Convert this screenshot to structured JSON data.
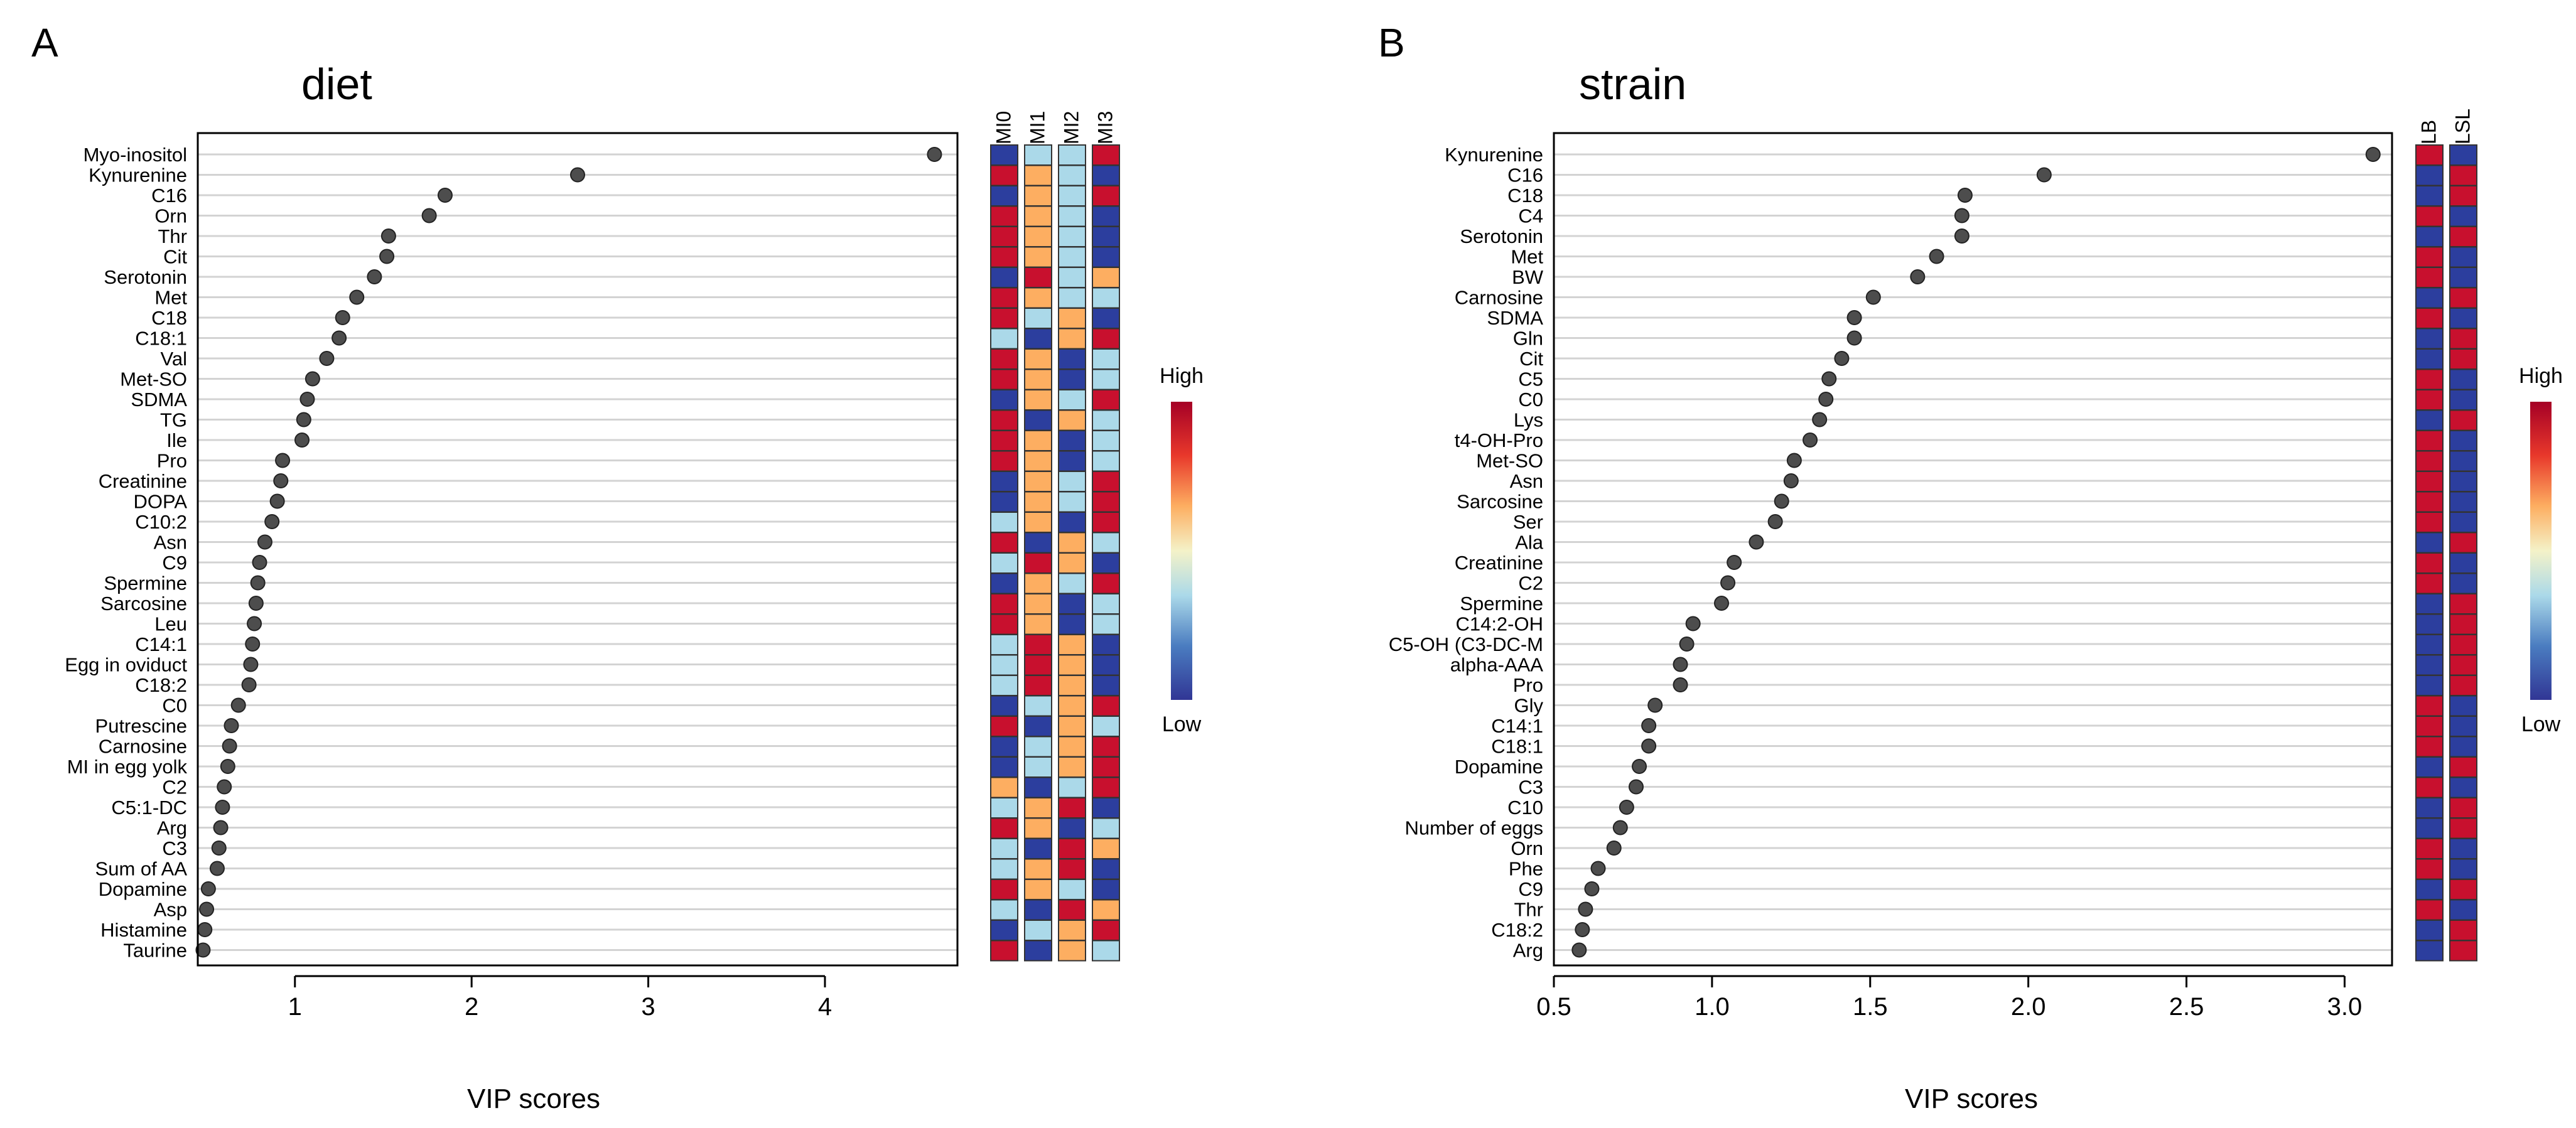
{
  "colors": {
    "high": "#c8102e",
    "orange": "#fdae61",
    "light": "#abd9e9",
    "low": "#2c3e9e",
    "point": "#4d4d4d",
    "grid": "#d3d3d3"
  },
  "legend": {
    "high": "High",
    "low": "Low"
  },
  "chart_data": [
    {
      "type": "scatter",
      "panel_letter": "A",
      "title": "diet",
      "xlabel": "VIP scores",
      "xlim": [
        0.45,
        4.75
      ],
      "xticks": [
        1,
        2,
        3,
        4
      ],
      "xtick_labels": [
        "1",
        "2",
        "3",
        "4"
      ],
      "heatmap_columns": [
        "MI0",
        "MI1",
        "MI2",
        "MI3"
      ],
      "rows": [
        {
          "name": "Myo-inositol",
          "vip": 4.62,
          "levels": [
            "low",
            "light",
            "light",
            "high"
          ]
        },
        {
          "name": "Kynurenine",
          "vip": 2.6,
          "levels": [
            "high",
            "orange",
            "light",
            "low"
          ]
        },
        {
          "name": "C16",
          "vip": 1.85,
          "levels": [
            "low",
            "orange",
            "light",
            "high"
          ]
        },
        {
          "name": "Orn",
          "vip": 1.76,
          "levels": [
            "high",
            "orange",
            "light",
            "low"
          ]
        },
        {
          "name": "Thr",
          "vip": 1.53,
          "levels": [
            "high",
            "orange",
            "light",
            "low"
          ]
        },
        {
          "name": "Cit",
          "vip": 1.52,
          "levels": [
            "high",
            "orange",
            "light",
            "low"
          ]
        },
        {
          "name": "Serotonin",
          "vip": 1.45,
          "levels": [
            "low",
            "high",
            "light",
            "orange"
          ]
        },
        {
          "name": "Met",
          "vip": 1.35,
          "levels": [
            "high",
            "orange",
            "light",
            "light"
          ]
        },
        {
          "name": "C18",
          "vip": 1.27,
          "levels": [
            "high",
            "light",
            "orange",
            "low"
          ]
        },
        {
          "name": "C18:1",
          "vip": 1.25,
          "levels": [
            "light",
            "low",
            "orange",
            "high"
          ]
        },
        {
          "name": "Val",
          "vip": 1.18,
          "levels": [
            "high",
            "orange",
            "low",
            "light"
          ]
        },
        {
          "name": "Met-SO",
          "vip": 1.1,
          "levels": [
            "high",
            "orange",
            "low",
            "light"
          ]
        },
        {
          "name": "SDMA",
          "vip": 1.07,
          "levels": [
            "low",
            "orange",
            "light",
            "high"
          ]
        },
        {
          "name": "TG",
          "vip": 1.05,
          "levels": [
            "high",
            "low",
            "orange",
            "light"
          ]
        },
        {
          "name": "Ile",
          "vip": 1.04,
          "levels": [
            "high",
            "orange",
            "low",
            "light"
          ]
        },
        {
          "name": "Pro",
          "vip": 0.93,
          "levels": [
            "high",
            "orange",
            "low",
            "light"
          ]
        },
        {
          "name": "Creatinine",
          "vip": 0.92,
          "levels": [
            "low",
            "orange",
            "light",
            "high"
          ]
        },
        {
          "name": "DOPA",
          "vip": 0.9,
          "levels": [
            "low",
            "orange",
            "light",
            "high"
          ]
        },
        {
          "name": "C10:2",
          "vip": 0.87,
          "levels": [
            "light",
            "orange",
            "low",
            "high"
          ]
        },
        {
          "name": "Asn",
          "vip": 0.83,
          "levels": [
            "high",
            "low",
            "orange",
            "light"
          ]
        },
        {
          "name": "C9",
          "vip": 0.8,
          "levels": [
            "light",
            "high",
            "orange",
            "low"
          ]
        },
        {
          "name": "Spermine",
          "vip": 0.79,
          "levels": [
            "low",
            "orange",
            "light",
            "high"
          ]
        },
        {
          "name": "Sarcosine",
          "vip": 0.78,
          "levels": [
            "high",
            "orange",
            "low",
            "light"
          ]
        },
        {
          "name": "Leu",
          "vip": 0.77,
          "levels": [
            "high",
            "orange",
            "low",
            "light"
          ]
        },
        {
          "name": "C14:1",
          "vip": 0.76,
          "levels": [
            "light",
            "high",
            "orange",
            "low"
          ]
        },
        {
          "name": "Egg in oviduct",
          "vip": 0.75,
          "levels": [
            "light",
            "high",
            "orange",
            "low"
          ]
        },
        {
          "name": "C18:2",
          "vip": 0.74,
          "levels": [
            "light",
            "high",
            "orange",
            "low"
          ]
        },
        {
          "name": "C0",
          "vip": 0.68,
          "levels": [
            "low",
            "light",
            "orange",
            "high"
          ]
        },
        {
          "name": "Putrescine",
          "vip": 0.64,
          "levels": [
            "high",
            "low",
            "orange",
            "light"
          ]
        },
        {
          "name": "Carnosine",
          "vip": 0.63,
          "levels": [
            "low",
            "light",
            "orange",
            "high"
          ]
        },
        {
          "name": "MI in egg yolk",
          "vip": 0.62,
          "levels": [
            "low",
            "light",
            "orange",
            "high"
          ]
        },
        {
          "name": "C2",
          "vip": 0.6,
          "levels": [
            "orange",
            "low",
            "light",
            "high"
          ]
        },
        {
          "name": "C5:1-DC",
          "vip": 0.59,
          "levels": [
            "light",
            "orange",
            "high",
            "low"
          ]
        },
        {
          "name": "Arg",
          "vip": 0.58,
          "levels": [
            "high",
            "orange",
            "low",
            "light"
          ]
        },
        {
          "name": "C3",
          "vip": 0.57,
          "levels": [
            "light",
            "low",
            "high",
            "orange"
          ]
        },
        {
          "name": "Sum of AA",
          "vip": 0.56,
          "levels": [
            "light",
            "orange",
            "high",
            "low"
          ]
        },
        {
          "name": "Dopamine",
          "vip": 0.51,
          "levels": [
            "high",
            "orange",
            "light",
            "low"
          ]
        },
        {
          "name": "Asp",
          "vip": 0.5,
          "levels": [
            "light",
            "low",
            "high",
            "orange"
          ]
        },
        {
          "name": "Histamine",
          "vip": 0.49,
          "levels": [
            "low",
            "light",
            "orange",
            "high"
          ]
        },
        {
          "name": "Taurine",
          "vip": 0.48,
          "levels": [
            "high",
            "low",
            "orange",
            "light"
          ]
        }
      ]
    },
    {
      "type": "scatter",
      "panel_letter": "B",
      "title": "strain",
      "xlabel": "VIP scores",
      "xlim": [
        0.5,
        3.15
      ],
      "xticks": [
        0.5,
        1.0,
        1.5,
        2.0,
        2.5,
        3.0
      ],
      "xtick_labels": [
        "0.5",
        "1.0",
        "1.5",
        "2.0",
        "2.5",
        "3.0"
      ],
      "heatmap_columns": [
        "LB",
        "LSL"
      ],
      "rows": [
        {
          "name": "Kynurenine",
          "vip": 3.09,
          "levels": [
            "high",
            "low"
          ]
        },
        {
          "name": "C16",
          "vip": 2.05,
          "levels": [
            "low",
            "high"
          ]
        },
        {
          "name": "C18",
          "vip": 1.8,
          "levels": [
            "low",
            "high"
          ]
        },
        {
          "name": "C4",
          "vip": 1.79,
          "levels": [
            "high",
            "low"
          ]
        },
        {
          "name": "Serotonin",
          "vip": 1.79,
          "levels": [
            "low",
            "high"
          ]
        },
        {
          "name": "Met",
          "vip": 1.71,
          "levels": [
            "high",
            "low"
          ]
        },
        {
          "name": "BW",
          "vip": 1.65,
          "levels": [
            "high",
            "low"
          ]
        },
        {
          "name": "Carnosine",
          "vip": 1.51,
          "levels": [
            "low",
            "high"
          ]
        },
        {
          "name": "SDMA",
          "vip": 1.45,
          "levels": [
            "high",
            "low"
          ]
        },
        {
          "name": "Gln",
          "vip": 1.45,
          "levels": [
            "low",
            "high"
          ]
        },
        {
          "name": "Cit",
          "vip": 1.41,
          "levels": [
            "low",
            "high"
          ]
        },
        {
          "name": "C5",
          "vip": 1.37,
          "levels": [
            "high",
            "low"
          ]
        },
        {
          "name": "C0",
          "vip": 1.36,
          "levels": [
            "high",
            "low"
          ]
        },
        {
          "name": "Lys",
          "vip": 1.34,
          "levels": [
            "low",
            "high"
          ]
        },
        {
          "name": "t4-OH-Pro",
          "vip": 1.31,
          "levels": [
            "high",
            "low"
          ]
        },
        {
          "name": "Met-SO",
          "vip": 1.26,
          "levels": [
            "high",
            "low"
          ]
        },
        {
          "name": "Asn",
          "vip": 1.25,
          "levels": [
            "high",
            "low"
          ]
        },
        {
          "name": "Sarcosine",
          "vip": 1.22,
          "levels": [
            "high",
            "low"
          ]
        },
        {
          "name": "Ser",
          "vip": 1.2,
          "levels": [
            "high",
            "low"
          ]
        },
        {
          "name": "Ala",
          "vip": 1.14,
          "levels": [
            "low",
            "high"
          ]
        },
        {
          "name": "Creatinine",
          "vip": 1.07,
          "levels": [
            "high",
            "low"
          ]
        },
        {
          "name": "C2",
          "vip": 1.05,
          "levels": [
            "high",
            "low"
          ]
        },
        {
          "name": "Spermine",
          "vip": 1.03,
          "levels": [
            "low",
            "high"
          ]
        },
        {
          "name": "C14:2-OH",
          "vip": 0.94,
          "levels": [
            "low",
            "high"
          ]
        },
        {
          "name": "C5-OH (C3-DC-M",
          "vip": 0.92,
          "levels": [
            "low",
            "high"
          ]
        },
        {
          "name": "alpha-AAA",
          "vip": 0.9,
          "levels": [
            "low",
            "high"
          ]
        },
        {
          "name": "Pro",
          "vip": 0.9,
          "levels": [
            "low",
            "high"
          ]
        },
        {
          "name": "Gly",
          "vip": 0.82,
          "levels": [
            "high",
            "low"
          ]
        },
        {
          "name": "C14:1",
          "vip": 0.8,
          "levels": [
            "high",
            "low"
          ]
        },
        {
          "name": "C18:1",
          "vip": 0.8,
          "levels": [
            "high",
            "low"
          ]
        },
        {
          "name": "Dopamine",
          "vip": 0.77,
          "levels": [
            "low",
            "high"
          ]
        },
        {
          "name": "C3",
          "vip": 0.76,
          "levels": [
            "high",
            "low"
          ]
        },
        {
          "name": "C10",
          "vip": 0.73,
          "levels": [
            "low",
            "high"
          ]
        },
        {
          "name": "Number of eggs",
          "vip": 0.71,
          "levels": [
            "low",
            "high"
          ]
        },
        {
          "name": "Orn",
          "vip": 0.69,
          "levels": [
            "high",
            "low"
          ]
        },
        {
          "name": "Phe",
          "vip": 0.64,
          "levels": [
            "high",
            "low"
          ]
        },
        {
          "name": "C9",
          "vip": 0.62,
          "levels": [
            "low",
            "high"
          ]
        },
        {
          "name": "Thr",
          "vip": 0.6,
          "levels": [
            "high",
            "low"
          ]
        },
        {
          "name": "C18:2",
          "vip": 0.59,
          "levels": [
            "low",
            "high"
          ]
        },
        {
          "name": "Arg",
          "vip": 0.58,
          "levels": [
            "low",
            "high"
          ]
        }
      ]
    }
  ]
}
